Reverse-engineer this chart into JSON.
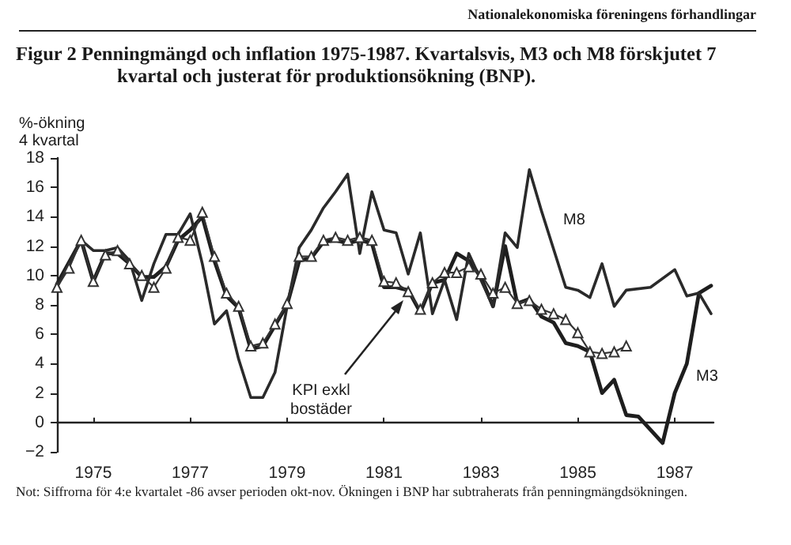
{
  "chart_data": {
    "type": "line",
    "title": "Figur 2 Penningmängd och inflation 1975-1987. Kvartalsvis, M3 och M8 förskjutet 7 kvartal och justerat för produktionsökning (BNP).",
    "ylabel": "%-ökning\n4 kvartal",
    "annotations": [
      "Nationalekonomiska föreningens förhandlingar",
      "Not: Siffrorna för 4:e kvartalet -86 avser perioden okt-nov. Ökningen i BNP har subtraherats från penningmängdsökningen."
    ],
    "xlim": [
      1974.75,
      1988.3
    ],
    "xticks": [
      {
        "value": 1975.5,
        "label": "1975"
      },
      {
        "value": 1977.5,
        "label": "1977"
      },
      {
        "value": 1979.5,
        "label": "1979"
      },
      {
        "value": 1981.5,
        "label": "1981"
      },
      {
        "value": 1983.5,
        "label": "1983"
      },
      {
        "value": 1985.5,
        "label": "1985"
      },
      {
        "value": 1987.5,
        "label": "1987"
      }
    ],
    "ylim": [
      -2,
      18
    ],
    "yticks": [
      -2,
      0,
      2,
      4,
      6,
      8,
      10,
      12,
      14,
      16,
      18
    ],
    "grid": false,
    "legend": false,
    "line_style": "solid",
    "marker": "none",
    "series": [
      {
        "name": "M3",
        "color": "#1e1e1e",
        "x": [
          1974.75,
          1975.25,
          1975.5,
          1975.75,
          1976,
          1976.25,
          1976.5,
          1976.75,
          1977,
          1977.25,
          1977.5,
          1977.75,
          1978,
          1978.25,
          1978.5,
          1978.75,
          1979,
          1979.25,
          1979.5,
          1979.75,
          1980,
          1980.25,
          1980.5,
          1980.75,
          1981,
          1981.25,
          1981.5,
          1981.75,
          1982,
          1982.25,
          1982.5,
          1982.75,
          1983,
          1983.25,
          1983.5,
          1983.75,
          1984,
          1984.25,
          1984.5,
          1984.75,
          1985,
          1985.25,
          1985.5,
          1985.75,
          1986,
          1986.25,
          1986.5,
          1986.75,
          1987,
          1987.25,
          1987.5,
          1987.75,
          1988,
          1988.25
        ],
        "values": [
          9.4,
          12.4,
          9.6,
          11.5,
          11.5,
          10.8,
          9.9,
          9.9,
          10.6,
          12.4,
          13.1,
          14.0,
          11.0,
          8.6,
          7.8,
          5.0,
          5.2,
          6.6,
          8.0,
          11.0,
          11.2,
          12.3,
          12.4,
          12.2,
          12.4,
          12.2,
          9.2,
          9.2,
          9.0,
          7.5,
          9.5,
          9.7,
          11.5,
          11.0,
          9.9,
          7.9,
          12.0,
          8.1,
          8.4,
          7.2,
          6.8,
          5.4,
          5.2,
          4.8,
          2.0,
          2.9,
          0.5,
          0.4,
          -0.5,
          -1.4,
          2.0,
          4.0,
          8.8,
          9.3
        ]
      },
      {
        "name": "M8",
        "color": "#2a2a2a",
        "x": [
          1974.75,
          1975.25,
          1975.5,
          1975.75,
          1976,
          1976.25,
          1976.5,
          1976.75,
          1977,
          1977.25,
          1977.5,
          1977.75,
          1978,
          1978.25,
          1978.5,
          1978.75,
          1979,
          1979.25,
          1979.5,
          1979.75,
          1980,
          1980.25,
          1980.5,
          1980.75,
          1981,
          1981.25,
          1981.5,
          1981.75,
          1982,
          1982.25,
          1982.5,
          1982.75,
          1983,
          1983.25,
          1983.5,
          1983.75,
          1984,
          1984.25,
          1984.5,
          1984.75,
          1985.25,
          1985.5,
          1985.75,
          1986,
          1986.25,
          1986.5,
          1987,
          1987.5,
          1987.75,
          1988,
          1988.25
        ],
        "values": [
          9.2,
          12.4,
          11.7,
          11.7,
          11.9,
          11.0,
          8.3,
          10.8,
          12.8,
          12.8,
          14.2,
          10.8,
          6.7,
          7.6,
          4.3,
          1.7,
          1.7,
          3.4,
          7.9,
          11.9,
          13.1,
          14.6,
          15.7,
          16.9,
          11.5,
          15.7,
          13.1,
          12.9,
          10.1,
          12.9,
          7.4,
          9.7,
          7.0,
          11.5,
          9.7,
          7.9,
          12.9,
          11.9,
          17.2,
          14.4,
          9.2,
          9.0,
          8.5,
          10.8,
          7.9,
          9.0,
          9.2,
          10.4,
          8.6,
          8.8,
          7.4
        ]
      },
      {
        "name": "KPI exkl bostäder",
        "color": "#333333",
        "marker": "triangle",
        "x": [
          1974.75,
          1975,
          1975.25,
          1975.5,
          1975.75,
          1976,
          1976.25,
          1976.5,
          1976.75,
          1977,
          1977.25,
          1977.5,
          1977.75,
          1978,
          1978.25,
          1978.5,
          1978.75,
          1979,
          1979.25,
          1979.5,
          1979.75,
          1980,
          1980.25,
          1980.5,
          1980.75,
          1981,
          1981.25,
          1981.5,
          1981.75,
          1982,
          1982.25,
          1982.5,
          1982.75,
          1983,
          1983.25,
          1983.5,
          1983.75,
          1984,
          1984.25,
          1984.5,
          1984.75,
          1985,
          1985.25,
          1985.5,
          1985.75,
          1986,
          1986.25,
          1986.5
        ],
        "values": [
          9.2,
          10.5,
          12.4,
          9.6,
          11.4,
          11.7,
          10.8,
          10.0,
          9.2,
          10.5,
          12.6,
          12.4,
          14.3,
          11.3,
          8.8,
          7.9,
          5.2,
          5.4,
          6.7,
          8.1,
          11.3,
          11.3,
          12.4,
          12.6,
          12.4,
          12.6,
          12.4,
          9.6,
          9.5,
          8.9,
          7.7,
          9.5,
          10.2,
          10.2,
          10.6,
          10.1,
          8.8,
          9.2,
          8.1,
          8.3,
          7.7,
          7.4,
          7.0,
          6.1,
          4.8,
          4.7,
          4.8,
          5.2
        ]
      }
    ]
  }
}
